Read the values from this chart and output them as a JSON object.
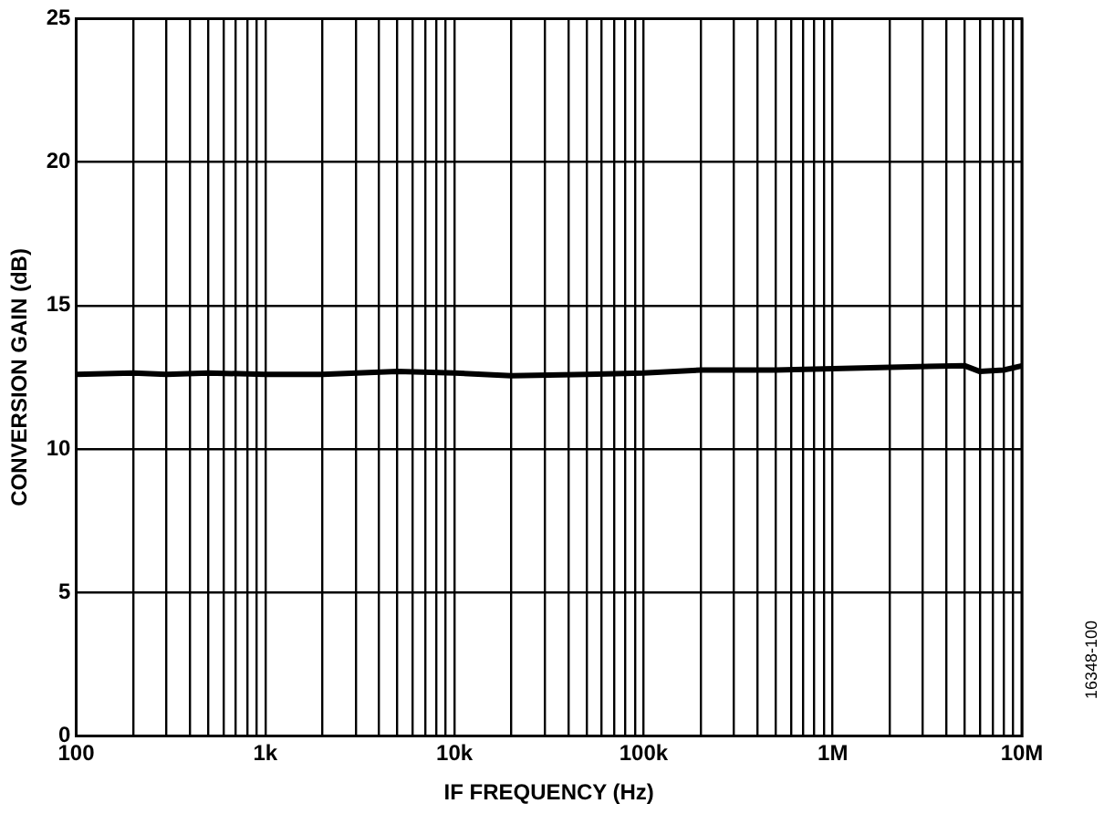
{
  "chart_data": {
    "type": "line",
    "xlabel": "IF FREQUENCY (Hz)",
    "ylabel": "CONVERSION GAIN (dB)",
    "log": "x",
    "grid": true,
    "legend": false,
    "marker": "none",
    "line_style": "solid",
    "x": [
      100,
      200,
      300,
      500,
      1000,
      2000,
      5000,
      10000,
      20000,
      50000,
      100000,
      200000,
      500000,
      1000000,
      2000000,
      5000000,
      6000000,
      8000000,
      10000000
    ],
    "series": [
      {
        "color": "#000000",
        "values": [
          12.6,
          12.65,
          12.6,
          12.65,
          12.6,
          12.6,
          12.7,
          12.65,
          12.55,
          12.6,
          12.65,
          12.75,
          12.75,
          12.8,
          12.85,
          12.9,
          12.7,
          12.75,
          12.9
        ]
      }
    ],
    "xlim": [
      100,
      10000000
    ],
    "ylim": [
      0,
      25
    ],
    "yticks": [
      0,
      5,
      10,
      15,
      20,
      25
    ],
    "xticks": [
      {
        "value": 100,
        "label": "100"
      },
      {
        "value": 200,
        "label": null
      },
      {
        "value": 300,
        "label": null
      },
      {
        "value": 400,
        "label": null
      },
      {
        "value": 500,
        "label": null
      },
      {
        "value": 600,
        "label": null
      },
      {
        "value": 700,
        "label": null
      },
      {
        "value": 800,
        "label": null
      },
      {
        "value": 900,
        "label": null
      },
      {
        "value": 1000,
        "label": "1k"
      },
      {
        "value": 2000,
        "label": null
      },
      {
        "value": 3000,
        "label": null
      },
      {
        "value": 4000,
        "label": null
      },
      {
        "value": 5000,
        "label": null
      },
      {
        "value": 6000,
        "label": null
      },
      {
        "value": 7000,
        "label": null
      },
      {
        "value": 8000,
        "label": null
      },
      {
        "value": 9000,
        "label": null
      },
      {
        "value": 10000,
        "label": "10k"
      },
      {
        "value": 20000,
        "label": null
      },
      {
        "value": 30000,
        "label": null
      },
      {
        "value": 40000,
        "label": null
      },
      {
        "value": 50000,
        "label": null
      },
      {
        "value": 60000,
        "label": null
      },
      {
        "value": 70000,
        "label": null
      },
      {
        "value": 80000,
        "label": null
      },
      {
        "value": 90000,
        "label": null
      },
      {
        "value": 100000,
        "label": "100k"
      },
      {
        "value": 200000,
        "label": null
      },
      {
        "value": 300000,
        "label": null
      },
      {
        "value": 400000,
        "label": null
      },
      {
        "value": 500000,
        "label": null
      },
      {
        "value": 600000,
        "label": null
      },
      {
        "value": 700000,
        "label": null
      },
      {
        "value": 800000,
        "label": null
      },
      {
        "value": 900000,
        "label": null
      },
      {
        "value": 1000000,
        "label": "1M"
      },
      {
        "value": 2000000,
        "label": null
      },
      {
        "value": 3000000,
        "label": null
      },
      {
        "value": 4000000,
        "label": null
      },
      {
        "value": 5000000,
        "label": null
      },
      {
        "value": 6000000,
        "label": null
      },
      {
        "value": 7000000,
        "label": null
      },
      {
        "value": 8000000,
        "label": null
      },
      {
        "value": 9000000,
        "label": null
      },
      {
        "value": 10000000,
        "label": "10M"
      }
    ],
    "annotations": [
      "16348-100"
    ]
  }
}
